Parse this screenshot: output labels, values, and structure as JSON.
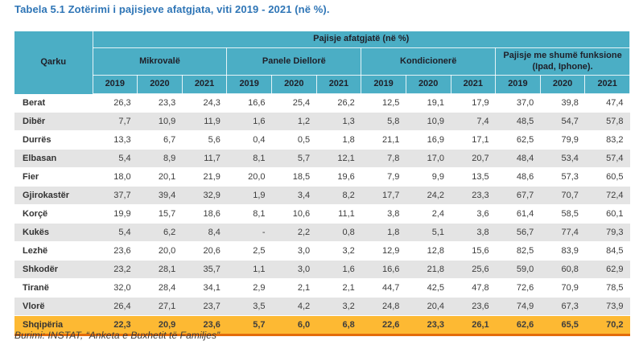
{
  "page": {
    "title": "Tabela 5.1 Zotërimi i pajisjeve afatgjata, viti 2019 - 2021 (në %).",
    "source_note": "Burimi: INSTAT, “Anketa e Buxhetit të Familjes”"
  },
  "colors": {
    "title_blue": "#2E75B6",
    "header_teal": "#4BAEC5",
    "row_alt": "#E4E4E4",
    "total_orange": "#FDB933",
    "total_border": "#E36C0A"
  },
  "table": {
    "span_header": "Pajisje afatgjatë (në %)",
    "region_header": "Qarku",
    "groups": [
      {
        "label": "Mikrovalë",
        "years": [
          "2019",
          "2020",
          "2021"
        ]
      },
      {
        "label": "Panele Diellorë",
        "years": [
          "2019",
          "2020",
          "2021"
        ]
      },
      {
        "label": "Kondicionerë",
        "years": [
          "2019",
          "2020",
          "2021"
        ]
      },
      {
        "label": "Pajisje me shumë funksione (Ipad, Iphone).",
        "years": [
          "2019",
          "2020",
          "2021"
        ]
      }
    ],
    "rows": [
      {
        "region": "Berat",
        "values": [
          "26,3",
          "23,3",
          "24,3",
          "16,6",
          "25,4",
          "26,2",
          "12,5",
          "19,1",
          "17,9",
          "37,0",
          "39,8",
          "47,4"
        ]
      },
      {
        "region": "Dibër",
        "values": [
          "7,7",
          "10,9",
          "11,9",
          "1,6",
          "1,2",
          "1,3",
          "5,8",
          "10,9",
          "7,4",
          "48,5",
          "54,7",
          "57,8"
        ]
      },
      {
        "region": "Durrës",
        "values": [
          "13,3",
          "6,7",
          "5,6",
          "0,4",
          "0,5",
          "1,8",
          "21,1",
          "16,9",
          "17,1",
          "62,5",
          "79,9",
          "83,2"
        ]
      },
      {
        "region": "Elbasan",
        "values": [
          "5,4",
          "8,9",
          "11,7",
          "8,1",
          "5,7",
          "12,1",
          "7,8",
          "17,0",
          "20,7",
          "48,4",
          "53,4",
          "57,4"
        ]
      },
      {
        "region": "Fier",
        "values": [
          "18,0",
          "20,1",
          "21,9",
          "20,0",
          "18,5",
          "19,6",
          "7,9",
          "9,9",
          "13,5",
          "48,6",
          "57,3",
          "60,5"
        ]
      },
      {
        "region": "Gjirokastër",
        "values": [
          "37,7",
          "39,4",
          "32,9",
          "1,9",
          "3,4",
          "8,2",
          "17,7",
          "24,2",
          "23,3",
          "67,7",
          "70,7",
          "72,4"
        ]
      },
      {
        "region": "Korçë",
        "values": [
          "19,9",
          "15,7",
          "18,6",
          "8,1",
          "10,6",
          "11,1",
          "3,8",
          "2,4",
          "3,6",
          "61,4",
          "58,5",
          "60,1"
        ]
      },
      {
        "region": "Kukës",
        "values": [
          "5,4",
          "6,2",
          "8,4",
          "-",
          "2,2",
          "0,8",
          "1,8",
          "5,1",
          "3,8",
          "56,7",
          "77,4",
          "79,3"
        ]
      },
      {
        "region": "Lezhë",
        "values": [
          "23,6",
          "20,0",
          "20,6",
          "2,5",
          "3,0",
          "3,2",
          "12,9",
          "12,8",
          "15,6",
          "82,5",
          "83,9",
          "84,5"
        ]
      },
      {
        "region": "Shkodër",
        "values": [
          "23,2",
          "28,1",
          "35,7",
          "1,1",
          "3,0",
          "1,6",
          "16,6",
          "21,8",
          "25,6",
          "59,0",
          "60,8",
          "62,9"
        ]
      },
      {
        "region": "Tiranë",
        "values": [
          "32,0",
          "28,4",
          "34,1",
          "2,9",
          "2,1",
          "2,1",
          "44,7",
          "42,5",
          "47,8",
          "72,6",
          "70,9",
          "78,5"
        ]
      },
      {
        "region": "Vlorë",
        "values": [
          "26,4",
          "27,1",
          "23,7",
          "3,5",
          "4,2",
          "3,2",
          "24,8",
          "20,4",
          "23,6",
          "74,9",
          "67,3",
          "73,9"
        ]
      }
    ],
    "total_row": {
      "region": "Shqipëria",
      "values": [
        "22,3",
        "20,9",
        "23,6",
        "5,7",
        "6,0",
        "6,8",
        "22,6",
        "23,3",
        "26,1",
        "62,6",
        "65,5",
        "70,2"
      ]
    }
  }
}
